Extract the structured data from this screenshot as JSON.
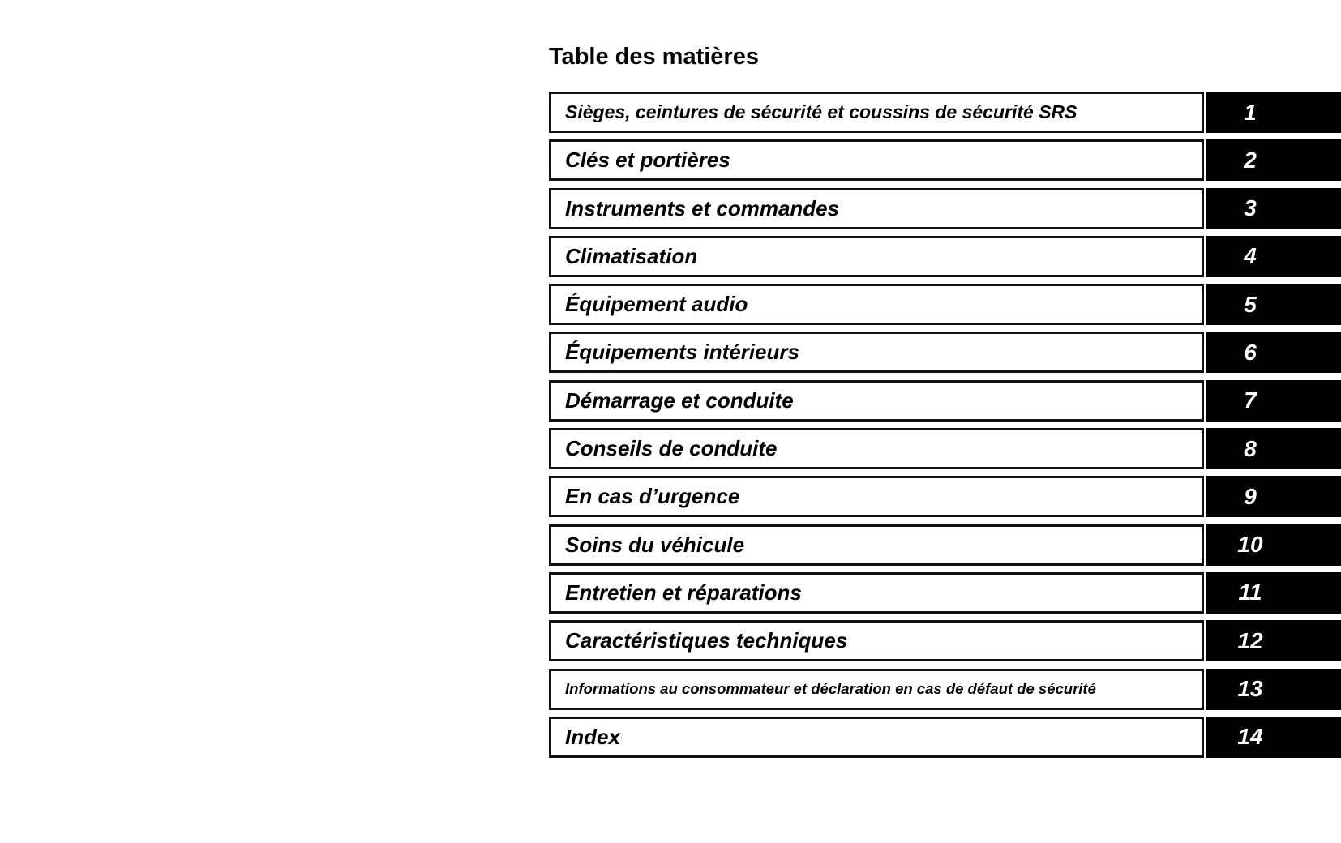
{
  "title": "Table des matières",
  "sections": [
    {
      "label": "Sièges, ceintures de sécurité et coussins de sécurité SRS",
      "number": "1"
    },
    {
      "label": "Clés et portières",
      "number": "2"
    },
    {
      "label": "Instruments et commandes",
      "number": "3"
    },
    {
      "label": "Climatisation",
      "number": "4"
    },
    {
      "label": "Équipement audio",
      "number": "5"
    },
    {
      "label": "Équipements intérieurs",
      "number": "6"
    },
    {
      "label": "Démarrage et conduite",
      "number": "7"
    },
    {
      "label": "Conseils de conduite",
      "number": "8"
    },
    {
      "label": "En cas d’urgence",
      "number": "9"
    },
    {
      "label": "Soins du véhicule",
      "number": "10"
    },
    {
      "label": "Entretien et réparations",
      "number": "11"
    },
    {
      "label": "Caractéristiques techniques",
      "number": "12"
    },
    {
      "label": "Informations au consommateur et déclaration en cas de défaut de sécurité",
      "number": "13"
    },
    {
      "label": "Index",
      "number": "14"
    }
  ]
}
